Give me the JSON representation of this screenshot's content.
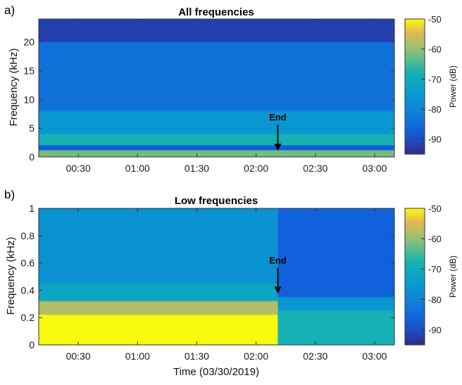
{
  "chart_data": [
    {
      "type": "heatmap",
      "panel_label": "a)",
      "title": "All frequencies",
      "ylabel": "Frequency (kHz)",
      "xlabel": "",
      "ylim": [
        0,
        24
      ],
      "y_ticks": [
        0,
        5,
        10,
        15,
        20
      ],
      "x_range": [
        "00:10",
        "03:10"
      ],
      "x_ticks": [
        "00:30",
        "01:00",
        "01:30",
        "02:00",
        "02:30",
        "03:00"
      ],
      "colorbar": {
        "label": "Power (dB)",
        "range": [
          -95,
          -50
        ],
        "ticks": [
          -50,
          -60,
          -70,
          -80,
          -90
        ]
      },
      "annotation": {
        "text": "End",
        "time": "02:11",
        "frequency_khz": 1.2
      },
      "bands": [
        {
          "freq_khz": [
            0.0,
            1.2
          ],
          "power_db": -62
        },
        {
          "freq_khz": [
            1.2,
            2.0
          ],
          "power_db": -88,
          "note": "narrow low-power band"
        },
        {
          "freq_khz": [
            2.0,
            4.0
          ],
          "power_db": -68
        },
        {
          "freq_khz": [
            4.0,
            8.0
          ],
          "power_db": -76
        },
        {
          "freq_khz": [
            8.0,
            20.0
          ],
          "power_db": -84
        },
        {
          "freq_khz": [
            20.0,
            24.0
          ],
          "power_db": -92
        }
      ]
    },
    {
      "type": "heatmap",
      "panel_label": "b)",
      "title": "Low frequencies",
      "ylabel": "Frequency (kHz)",
      "xlabel": "Time (03/30/2019)",
      "ylim": [
        0,
        1
      ],
      "y_ticks": [
        0,
        0.2,
        0.4,
        0.6,
        0.8,
        1
      ],
      "x_range": [
        "00:10",
        "03:10"
      ],
      "x_ticks": [
        "00:30",
        "01:00",
        "01:30",
        "02:00",
        "02:30",
        "03:00"
      ],
      "colorbar": {
        "label": "Power (dB)",
        "range": [
          -95,
          -50
        ],
        "ticks": [
          -50,
          -60,
          -70,
          -80,
          -90
        ]
      },
      "annotation": {
        "text": "End",
        "time": "02:11",
        "frequency_khz": 0.38
      },
      "segments": [
        {
          "time": [
            "00:10",
            "02:11"
          ],
          "bands": [
            {
              "freq_khz": [
                0.0,
                0.22
              ],
              "power_db": -50
            },
            {
              "freq_khz": [
                0.22,
                0.32
              ],
              "power_db": -58
            },
            {
              "freq_khz": [
                0.32,
                0.45
              ],
              "power_db": -72
            },
            {
              "freq_khz": [
                0.45,
                1.0
              ],
              "power_db": -77
            }
          ]
        },
        {
          "time": [
            "02:11",
            "03:10"
          ],
          "bands": [
            {
              "freq_khz": [
                0.0,
                0.25
              ],
              "power_db": -68
            },
            {
              "freq_khz": [
                0.25,
                0.35
              ],
              "power_db": -76
            },
            {
              "freq_khz": [
                0.35,
                1.0
              ],
              "power_db": -87
            }
          ]
        }
      ]
    }
  ]
}
